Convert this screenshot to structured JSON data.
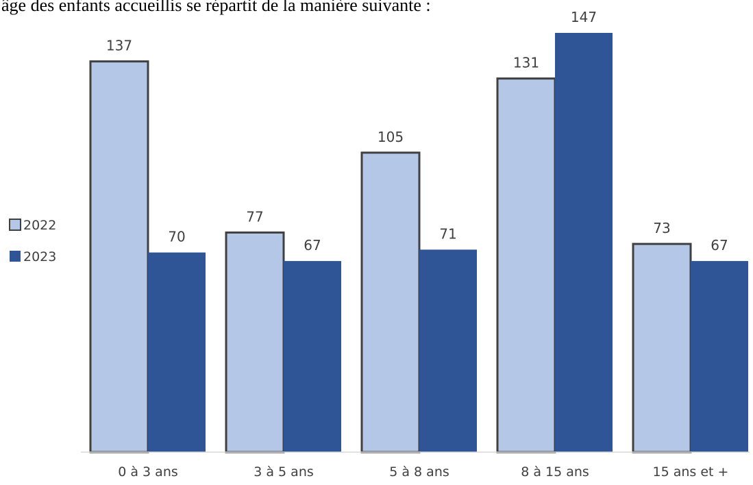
{
  "intro_text": "âge des enfants accueillis se répartit de la manière suivante :",
  "chart_data": {
    "type": "bar",
    "categories": [
      "0 à 3 ans",
      "3 à 5 ans",
      "5 à 8 ans",
      "8 à 15 ans",
      "15 ans et +"
    ],
    "series": [
      {
        "name": "2022",
        "values": [
          137,
          77,
          105,
          131,
          73
        ],
        "color": "#b4c7e7",
        "stroke": "#404040"
      },
      {
        "name": "2023",
        "values": [
          70,
          67,
          71,
          147,
          67
        ],
        "color": "#2f5597",
        "stroke": "none"
      }
    ],
    "title": "",
    "xlabel": "",
    "ylabel": "",
    "ylim": [
      0,
      147
    ],
    "grid": false,
    "legend": "left"
  }
}
